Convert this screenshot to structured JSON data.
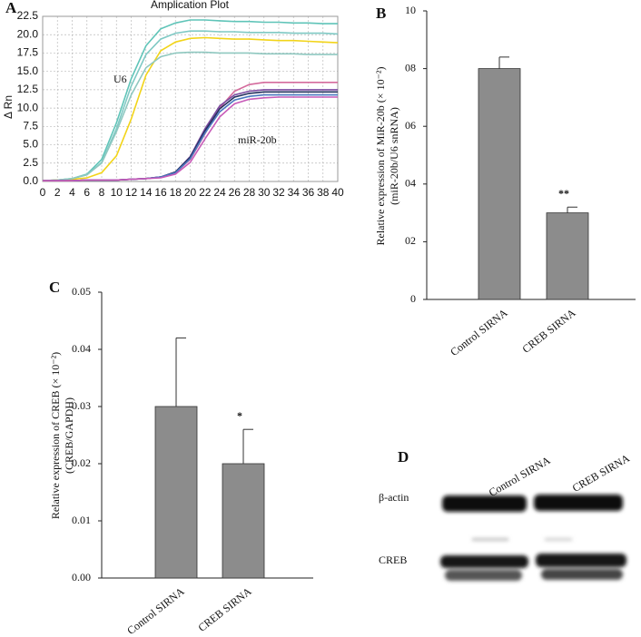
{
  "chart_data": [
    {
      "type": "line",
      "panel": "A",
      "title": "Amplication Plot",
      "y_label": "Δ Rn",
      "x": [
        0,
        2,
        4,
        6,
        8,
        10,
        12,
        14,
        16,
        18,
        20,
        22,
        24,
        26,
        28,
        30,
        32,
        34,
        36,
        38,
        40
      ],
      "xlim": [
        0,
        40
      ],
      "xticks": [
        0,
        2,
        4,
        6,
        8,
        10,
        12,
        14,
        16,
        18,
        20,
        22,
        24,
        26,
        28,
        30,
        32,
        34,
        36,
        38,
        40
      ],
      "ylim": [
        0,
        22.5
      ],
      "yticks": [
        {
          "value": 0,
          "label": "0.0"
        },
        2.5,
        {
          "value": 5,
          "label": "5.0"
        },
        7.5,
        {
          "value": 10,
          "label": "10.0"
        },
        12.5,
        {
          "value": 15,
          "label": "15.0"
        },
        17.5,
        {
          "value": 20,
          "label": "20.0"
        },
        22.5
      ],
      "grid": true,
      "annotations": [
        {
          "text": "U6"
        },
        {
          "text": "miR-20b"
        }
      ],
      "series": [
        {
          "color": "#5fc4b8",
          "values": [
            0.1,
            0.2,
            0.4,
            1.0,
            3.0,
            8.0,
            14.0,
            18.5,
            20.8,
            21.6,
            22.0,
            22.0,
            21.9,
            21.8,
            21.8,
            21.7,
            21.7,
            21.6,
            21.6,
            21.5,
            21.5
          ]
        },
        {
          "color": "#7fc9c4",
          "values": [
            0.1,
            0.2,
            0.4,
            0.9,
            2.6,
            7.2,
            13.0,
            17.3,
            19.4,
            20.2,
            20.5,
            20.5,
            20.4,
            20.4,
            20.3,
            20.3,
            20.3,
            20.2,
            20.2,
            20.2,
            20.1
          ]
        },
        {
          "color": "#f2d419",
          "values": [
            0.1,
            0.2,
            0.3,
            0.5,
            1.2,
            3.5,
            8.5,
            14.5,
            17.8,
            19.0,
            19.5,
            19.6,
            19.5,
            19.4,
            19.4,
            19.3,
            19.2,
            19.2,
            19.1,
            19.0,
            18.9
          ]
        },
        {
          "color": "#8fc8c0",
          "values": [
            0.1,
            0.2,
            0.4,
            0.9,
            2.5,
            6.8,
            11.8,
            15.5,
            17.0,
            17.5,
            17.6,
            17.6,
            17.5,
            17.5,
            17.5,
            17.4,
            17.4,
            17.4,
            17.3,
            17.3,
            17.3
          ]
        },
        {
          "color": "#d46a9c",
          "values": [
            0.1,
            0.1,
            0.1,
            0.2,
            0.2,
            0.2,
            0.3,
            0.4,
            0.6,
            1.2,
            3.0,
            6.5,
            10.0,
            12.3,
            13.2,
            13.5,
            13.5,
            13.5,
            13.5,
            13.5,
            13.5
          ]
        },
        {
          "color": "#7a4aa0",
          "values": [
            0.1,
            0.1,
            0.1,
            0.2,
            0.2,
            0.2,
            0.3,
            0.4,
            0.6,
            1.3,
            3.4,
            7.2,
            10.3,
            11.8,
            12.3,
            12.5,
            12.5,
            12.5,
            12.5,
            12.5,
            12.5
          ]
        },
        {
          "color": "#23305e",
          "values": [
            0.1,
            0.1,
            0.1,
            0.2,
            0.2,
            0.2,
            0.3,
            0.4,
            0.6,
            1.3,
            3.3,
            6.9,
            9.9,
            11.5,
            12.0,
            12.2,
            12.2,
            12.2,
            12.2,
            12.2,
            12.2
          ]
        },
        {
          "color": "#4a78c0",
          "values": [
            0.1,
            0.1,
            0.1,
            0.2,
            0.2,
            0.2,
            0.3,
            0.4,
            0.6,
            1.2,
            3.1,
            6.6,
            9.5,
            11.1,
            11.6,
            11.8,
            11.8,
            11.8,
            11.8,
            11.8,
            11.8
          ]
        },
        {
          "color": "#c85ab8",
          "values": [
            0.1,
            0.1,
            0.1,
            0.2,
            0.2,
            0.2,
            0.3,
            0.4,
            0.5,
            1.0,
            2.6,
            5.8,
            8.8,
            10.6,
            11.2,
            11.4,
            11.5,
            11.5,
            11.5,
            11.5,
            11.5
          ]
        }
      ]
    },
    {
      "type": "bar",
      "panel": "B",
      "y_label": [
        "Relative expression of MiR-20b (× 10⁻²)",
        "(miR-20b/U6 snRNA)"
      ],
      "categories": [
        "Control SIRNA",
        "CREB SIRNA"
      ],
      "values": [
        8,
        3
      ],
      "errors": [
        0.4,
        0.2
      ],
      "color": "#8c8c8c",
      "ylim": [
        0,
        10
      ],
      "yticks": [
        0,
        {
          "value": 2,
          "label": "02"
        },
        {
          "value": 4,
          "label": "04"
        },
        {
          "value": 6,
          "label": "06"
        },
        {
          "value": 8,
          "label": "08"
        },
        10
      ],
      "annotations": [
        {
          "text": "**",
          "bar": 1
        }
      ]
    },
    {
      "type": "bar",
      "panel": "C",
      "y_label": [
        "Relative expression of CREB (× 10⁻²)",
        "(CREB/GAPDH)"
      ],
      "categories": [
        "Control SIRNA",
        "CREB SIRNA"
      ],
      "values": [
        0.03,
        0.02
      ],
      "errors": [
        0.012,
        0.006
      ],
      "color": "#8c8c8c",
      "ylim": [
        0,
        0.05
      ],
      "yticks": [
        {
          "value": 0,
          "label": "0.00"
        },
        0.01,
        0.02,
        0.03,
        0.04,
        0.05
      ],
      "annotations": [
        {
          "text": "*",
          "bar": 1
        }
      ]
    }
  ],
  "blot": {
    "panel": "D",
    "lanes": [
      "Control SIRNA",
      "CREB SIRNA"
    ],
    "rows": [
      "β-actin",
      "CREB"
    ]
  }
}
